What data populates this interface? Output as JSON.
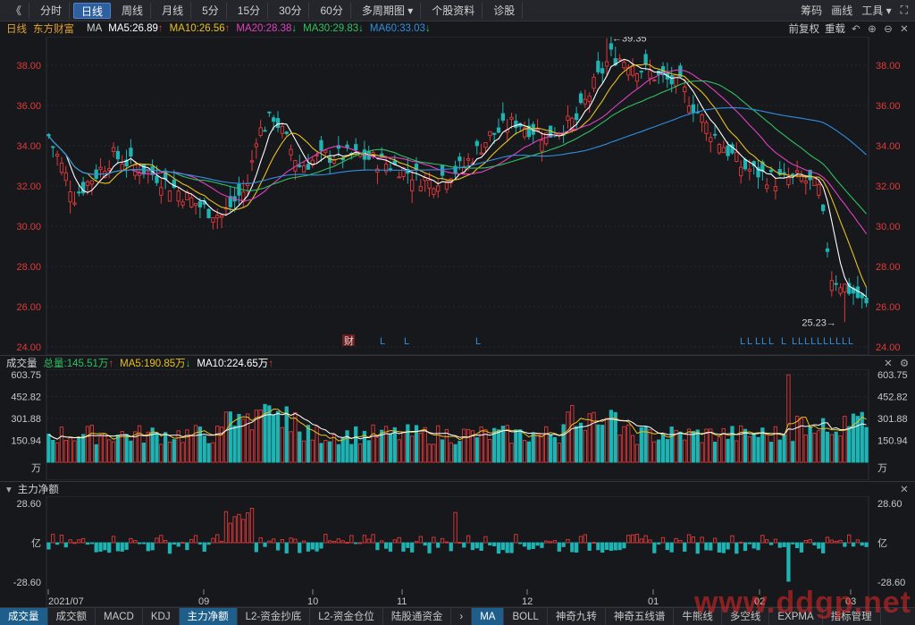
{
  "toolbar": {
    "back_glyph": "《",
    "periods": [
      "分时",
      "日线",
      "周线",
      "月线",
      "5分",
      "15分",
      "30分",
      "60分"
    ],
    "active_period": "日线",
    "multi_period": "多周期图",
    "stock_info": "个股资料",
    "diagnose": "诊股",
    "right": [
      "筹码",
      "画线",
      "工具"
    ]
  },
  "main": {
    "period": "日线",
    "stock_name": "东方财富",
    "indicator": "MA",
    "ma5": "MA5:26.89",
    "ma10": "MA10:26.56",
    "ma20": "MA20:28.38",
    "ma30": "MA30:29.83",
    "ma60": "MA60:33.03",
    "adjust": "前复权",
    "reload": "重载",
    "high_label": "39.35",
    "low_label": "25.23",
    "event_cai": "财",
    "y_ticks": [
      "38.00",
      "36.00",
      "34.00",
      "32.00",
      "30.00",
      "28.00",
      "26.00",
      "24.00"
    ]
  },
  "volume": {
    "title": "成交量",
    "total": "总量:145.51万",
    "ma5": "MA5:190.85万",
    "ma10": "MA10:224.65万",
    "y_ticks": [
      "603.75",
      "452.82",
      "301.88",
      "150.94",
      "万"
    ]
  },
  "flow": {
    "title": "主力净额",
    "y_top": "28.60",
    "y_unit": "亿",
    "y_bottom": "-28.60"
  },
  "x_axis": [
    "2021/07",
    "09",
    "10",
    "11",
    "12",
    "01",
    "02",
    "03"
  ],
  "bottom_tabs": [
    "成交量",
    "成交额",
    "MACD",
    "KDJ",
    "主力净额",
    "L2-资金抄底",
    "L2-资金仓位",
    "陆股通资金"
  ],
  "bottom_tabs2": [
    "MA",
    "BOLL",
    "神奇九转",
    "神奇五线谱",
    "牛熊线",
    "多空线",
    "EXPMA",
    "指标管理"
  ],
  "colors": {
    "up": "#e03a3a",
    "down": "#1fb3b3",
    "ma5": "#ffffff",
    "ma10": "#e8c020",
    "ma20": "#e040c0",
    "ma30": "#30c060",
    "ma60": "#2f8fe0"
  },
  "watermark": "www.ddgp.net"
}
